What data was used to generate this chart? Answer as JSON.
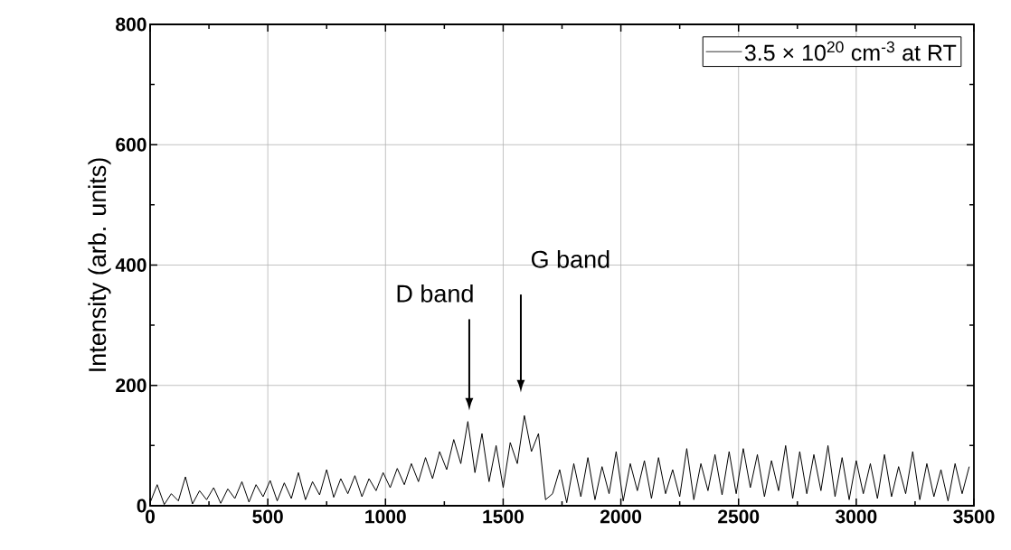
{
  "chart_data": {
    "type": "line",
    "ylabel": "Intensity (arb. units)",
    "xlim": [
      0,
      3500
    ],
    "ylim": [
      0,
      800
    ],
    "xticks": [
      0,
      500,
      1000,
      1500,
      2000,
      2500,
      3000,
      3500
    ],
    "yticks": [
      0,
      200,
      400,
      600,
      800
    ],
    "grid": true,
    "legend": "top right",
    "annotations": [
      "D band",
      "G band"
    ],
    "series": [
      {
        "name": "3.5 × 10$^{20}$ cm$^{-3}$ at RT",
        "color": "#000000",
        "x": [
          0,
          30,
          60,
          90,
          120,
          150,
          180,
          210,
          240,
          270,
          300,
          330,
          360,
          390,
          420,
          450,
          480,
          510,
          540,
          570,
          600,
          630,
          660,
          690,
          720,
          750,
          780,
          810,
          840,
          870,
          900,
          930,
          960,
          990,
          1020,
          1050,
          1080,
          1110,
          1140,
          1170,
          1200,
          1230,
          1260,
          1290,
          1320,
          1350,
          1380,
          1410,
          1440,
          1470,
          1500,
          1530,
          1560,
          1590,
          1620,
          1650,
          1680,
          1710,
          1740,
          1770,
          1800,
          1830,
          1860,
          1890,
          1920,
          1950,
          1980,
          2010,
          2040,
          2070,
          2100,
          2130,
          2160,
          2190,
          2220,
          2250,
          2280,
          2310,
          2340,
          2370,
          2400,
          2430,
          2460,
          2490,
          2520,
          2550,
          2580,
          2610,
          2640,
          2670,
          2700,
          2730,
          2760,
          2790,
          2820,
          2850,
          2880,
          2910,
          2940,
          2970,
          3000,
          3030,
          3060,
          3090,
          3120,
          3150,
          3180,
          3210,
          3240,
          3270,
          3300,
          3330,
          3360,
          3390,
          3420,
          3450,
          3480
        ],
        "values": [
          5,
          35,
          2,
          20,
          8,
          48,
          3,
          25,
          10,
          30,
          4,
          28,
          12,
          40,
          6,
          35,
          15,
          42,
          8,
          38,
          12,
          55,
          10,
          40,
          18,
          60,
          14,
          45,
          20,
          50,
          15,
          45,
          25,
          55,
          30,
          62,
          35,
          70,
          40,
          80,
          45,
          90,
          60,
          110,
          70,
          140,
          55,
          120,
          40,
          100,
          30,
          105,
          70,
          150,
          90,
          120,
          10,
          20,
          60,
          5,
          70,
          15,
          80,
          10,
          65,
          20,
          90,
          8,
          70,
          25,
          75,
          12,
          80,
          20,
          60,
          15,
          95,
          10,
          70,
          25,
          85,
          18,
          90,
          20,
          95,
          30,
          85,
          15,
          75,
          25,
          100,
          12,
          90,
          20,
          85,
          25,
          100,
          15,
          80,
          10,
          75,
          20,
          70,
          12,
          85,
          15,
          65,
          20,
          90,
          10,
          70,
          15,
          60,
          8,
          70,
          20,
          65
        ]
      }
    ]
  }
}
